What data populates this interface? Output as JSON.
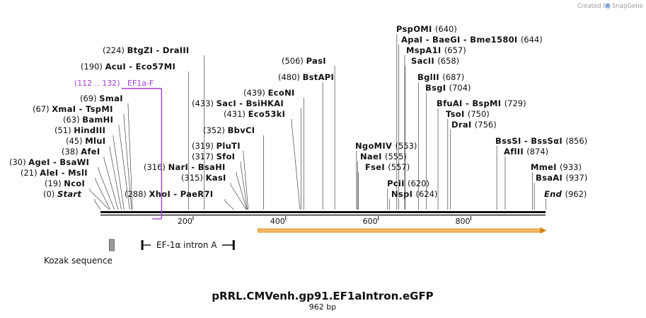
{
  "credit": "Created by",
  "brand": "SnapGene",
  "plasmid": {
    "name": "pRRL.CMVenh.gp91.EF1aIntron.eGFP",
    "length": "962 bp"
  },
  "colors": {
    "primer": "#a43fd6",
    "orf_fill": "#f4b860",
    "orf_edge": "#d2861c",
    "kozak": "#9a9a9a"
  },
  "axis_ticks": [
    {
      "pos": 200,
      "label": "200"
    },
    {
      "pos": 400,
      "label": "400"
    },
    {
      "pos": 600,
      "label": "600"
    },
    {
      "pos": 800,
      "label": "800"
    }
  ],
  "features": {
    "kozak": {
      "label": "Kozak sequence",
      "start": 19,
      "end": 28
    },
    "intron": {
      "label": "EF-1α intron A",
      "start": 88,
      "end": 290
    },
    "orf": {
      "start": 340,
      "end": 962
    }
  },
  "primer": {
    "range": "(112 .. 132)",
    "name": "EF1a-F",
    "start": 112,
    "end": 132
  },
  "sites": [
    {
      "pos": "(0)",
      "name": "Start",
      "bp": 0,
      "italic": true
    },
    {
      "pos": "(19)",
      "name": "NcoI",
      "bp": 19
    },
    {
      "pos": "(21)",
      "name": "AleI  - MslI",
      "bp": 21
    },
    {
      "pos": "(30)",
      "name": "AgeI  - BsaWI",
      "bp": 30
    },
    {
      "pos": "(38)",
      "name": "AfeI",
      "bp": 38
    },
    {
      "pos": "(45)",
      "name": "MluI",
      "bp": 45
    },
    {
      "pos": "(51)",
      "name": "HindIII",
      "bp": 51
    },
    {
      "pos": "(63)",
      "name": "BamHI",
      "bp": 63
    },
    {
      "pos": "(67)",
      "name": "XmaI  - TspMI",
      "bp": 67
    },
    {
      "pos": "(69)",
      "name": "SmaI",
      "bp": 69
    },
    {
      "pos": "(190)",
      "name": "AcuI  - Eco57MI",
      "bp": 190
    },
    {
      "pos": "(224)",
      "name": "BtgZI  - DraIII",
      "bp": 224
    },
    {
      "pos": "(288)",
      "name": "XhoI  - PaeR7I",
      "bp": 288
    },
    {
      "pos": "(315)",
      "name": "KasI",
      "bp": 315
    },
    {
      "pos": "(316)",
      "name": "NarI  - BsaHI",
      "bp": 316
    },
    {
      "pos": "(317)",
      "name": "SfoI",
      "bp": 317
    },
    {
      "pos": "(319)",
      "name": "PluTI",
      "bp": 319
    },
    {
      "pos": "(352)",
      "name": "BbvCI",
      "bp": 352
    },
    {
      "pos": "(431)",
      "name": "Eco53kI",
      "bp": 431
    },
    {
      "pos": "(433)",
      "name": "SacI  - BsiHKAI",
      "bp": 433
    },
    {
      "pos": "(439)",
      "name": "EcoNI",
      "bp": 439
    },
    {
      "pos": "(480)",
      "name": "BstAPI",
      "bp": 480
    },
    {
      "pos": "(506)",
      "name": "PasI",
      "bp": 506
    },
    {
      "pos": "(553)",
      "name": "NgoMIV",
      "bp": 553
    },
    {
      "pos": "(555)",
      "name": "NaeI",
      "bp": 555
    },
    {
      "pos": "(557)",
      "name": "FseI",
      "bp": 557
    },
    {
      "pos": "(620)",
      "name": "PciI",
      "bp": 620
    },
    {
      "pos": "(624)",
      "name": "NspI",
      "bp": 624
    },
    {
      "pos": "(640)",
      "name": "PspOMI",
      "bp": 640
    },
    {
      "pos": "(644)",
      "name": "ApaI  - BaeGI  - Bme1580I",
      "bp": 644
    },
    {
      "pos": "(657)",
      "name": "MspA1I",
      "bp": 657
    },
    {
      "pos": "(658)",
      "name": "SacII",
      "bp": 658
    },
    {
      "pos": "(687)",
      "name": "BglII",
      "bp": 687
    },
    {
      "pos": "(704)",
      "name": "BsgI",
      "bp": 704
    },
    {
      "pos": "(729)",
      "name": "BfuAI  - BspMI",
      "bp": 729
    },
    {
      "pos": "(750)",
      "name": "TsoI",
      "bp": 750
    },
    {
      "pos": "(756)",
      "name": "DraI",
      "bp": 756
    },
    {
      "pos": "(856)",
      "name": "BssSI  - BssSαI",
      "bp": 856
    },
    {
      "pos": "(874)",
      "name": "AflII",
      "bp": 874
    },
    {
      "pos": "(933)",
      "name": "MmeI",
      "bp": 933
    },
    {
      "pos": "(937)",
      "name": "BsaAI",
      "bp": 937
    },
    {
      "pos": "(962)",
      "name": "End",
      "bp": 962,
      "italic": true
    }
  ]
}
